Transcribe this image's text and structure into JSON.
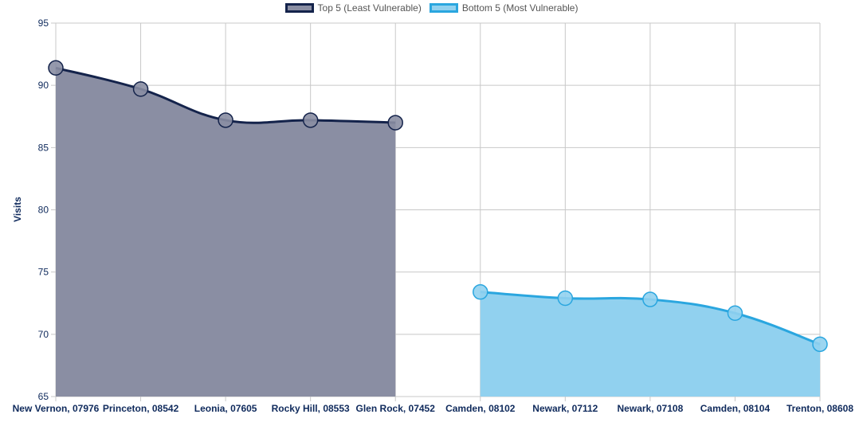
{
  "chart_data": {
    "type": "area",
    "title": "",
    "xlabel": "",
    "ylabel": "Visits",
    "ylim": [
      65,
      95
    ],
    "yticks": [
      65,
      70,
      75,
      80,
      85,
      90,
      95
    ],
    "categories": [
      "New Vernon, 07976",
      "Princeton, 08542",
      "Leonia, 07605",
      "Rocky Hill, 08553",
      "Glen Rock, 07452",
      "Camden, 08102",
      "Newark, 07112",
      "Newark, 07108",
      "Camden, 08104",
      "Trenton, 08608"
    ],
    "grid": true,
    "legend_position": "top-center",
    "series": [
      {
        "name": "Top 5 (Least Vulnerable)",
        "values": [
          91.4,
          89.7,
          87.2,
          87.2,
          87.0,
          null,
          null,
          null,
          null,
          null
        ],
        "line_color": "#14234b",
        "fill_color": "#8a8ea3"
      },
      {
        "name": "Bottom 5 (Most Vulnerable)",
        "values": [
          null,
          null,
          null,
          null,
          null,
          73.4,
          72.9,
          72.8,
          71.7,
          69.2
        ],
        "line_color": "#2aa6df",
        "fill_color": "#91d1ef"
      }
    ]
  }
}
